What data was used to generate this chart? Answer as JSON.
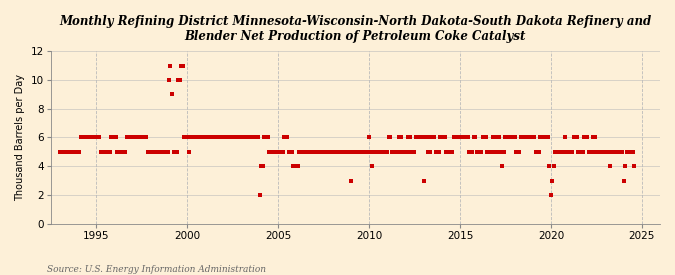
{
  "title": "Monthly Refining District Minnesota-Wisconsin-North Dakota-South Dakota Refinery and\nBlender Net Production of Petroleum Coke Catalyst",
  "ylabel": "Thousand Barrels per Day",
  "source": "Source: U.S. Energy Information Administration",
  "bg_color": "#fdf0d8",
  "plot_bg_color": "#fdf0d8",
  "marker_color": "#cc0000",
  "xlim": [
    1992.5,
    2026.0
  ],
  "ylim": [
    0,
    12
  ],
  "yticks": [
    0,
    2,
    4,
    6,
    8,
    10,
    12
  ],
  "xticks": [
    1995,
    2000,
    2005,
    2010,
    2015,
    2020,
    2025
  ],
  "data": [
    [
      1993.0,
      5
    ],
    [
      1993.08,
      5
    ],
    [
      1993.17,
      5
    ],
    [
      1993.25,
      5
    ],
    [
      1993.33,
      5
    ],
    [
      1993.42,
      5
    ],
    [
      1993.5,
      5
    ],
    [
      1993.58,
      5
    ],
    [
      1993.67,
      5
    ],
    [
      1993.75,
      5
    ],
    [
      1993.83,
      5
    ],
    [
      1993.92,
      5
    ],
    [
      1994.0,
      5
    ],
    [
      1994.08,
      5
    ],
    [
      1994.17,
      6
    ],
    [
      1994.25,
      6
    ],
    [
      1994.33,
      6
    ],
    [
      1994.42,
      6
    ],
    [
      1994.5,
      6
    ],
    [
      1994.58,
      6
    ],
    [
      1994.67,
      6
    ],
    [
      1994.75,
      6
    ],
    [
      1994.83,
      6
    ],
    [
      1994.92,
      6
    ],
    [
      1995.0,
      6
    ],
    [
      1995.08,
      6
    ],
    [
      1995.17,
      6
    ],
    [
      1995.25,
      5
    ],
    [
      1995.33,
      5
    ],
    [
      1995.42,
      5
    ],
    [
      1995.5,
      5
    ],
    [
      1995.58,
      5
    ],
    [
      1995.67,
      5
    ],
    [
      1995.75,
      5
    ],
    [
      1995.83,
      6
    ],
    [
      1995.92,
      6
    ],
    [
      1996.0,
      6
    ],
    [
      1996.08,
      6
    ],
    [
      1996.17,
      5
    ],
    [
      1996.25,
      5
    ],
    [
      1996.33,
      5
    ],
    [
      1996.42,
      5
    ],
    [
      1996.5,
      5
    ],
    [
      1996.58,
      5
    ],
    [
      1996.67,
      6
    ],
    [
      1996.75,
      6
    ],
    [
      1996.83,
      6
    ],
    [
      1996.92,
      6
    ],
    [
      1997.0,
      6
    ],
    [
      1997.08,
      6
    ],
    [
      1997.17,
      6
    ],
    [
      1997.25,
      6
    ],
    [
      1997.33,
      6
    ],
    [
      1997.42,
      6
    ],
    [
      1997.5,
      6
    ],
    [
      1997.58,
      6
    ],
    [
      1997.67,
      6
    ],
    [
      1997.75,
      6
    ],
    [
      1997.83,
      5
    ],
    [
      1997.92,
      5
    ],
    [
      1998.0,
      5
    ],
    [
      1998.08,
      5
    ],
    [
      1998.17,
      5
    ],
    [
      1998.25,
      5
    ],
    [
      1998.33,
      5
    ],
    [
      1998.42,
      5
    ],
    [
      1998.5,
      5
    ],
    [
      1998.58,
      5
    ],
    [
      1998.67,
      5
    ],
    [
      1998.75,
      5
    ],
    [
      1998.83,
      5
    ],
    [
      1998.92,
      5
    ],
    [
      1999.0,
      10
    ],
    [
      1999.08,
      11
    ],
    [
      1999.17,
      9
    ],
    [
      1999.25,
      5
    ],
    [
      1999.33,
      5
    ],
    [
      1999.42,
      5
    ],
    [
      1999.5,
      10
    ],
    [
      1999.58,
      10
    ],
    [
      1999.67,
      11
    ],
    [
      1999.75,
      11
    ],
    [
      1999.83,
      6
    ],
    [
      1999.92,
      6
    ],
    [
      2000.0,
      6
    ],
    [
      2000.08,
      5
    ],
    [
      2000.17,
      6
    ],
    [
      2000.25,
      6
    ],
    [
      2000.33,
      6
    ],
    [
      2000.42,
      6
    ],
    [
      2000.5,
      6
    ],
    [
      2000.58,
      6
    ],
    [
      2000.67,
      6
    ],
    [
      2000.75,
      6
    ],
    [
      2000.83,
      6
    ],
    [
      2000.92,
      6
    ],
    [
      2001.0,
      6
    ],
    [
      2001.08,
      6
    ],
    [
      2001.17,
      6
    ],
    [
      2001.25,
      6
    ],
    [
      2001.33,
      6
    ],
    [
      2001.42,
      6
    ],
    [
      2001.5,
      6
    ],
    [
      2001.58,
      6
    ],
    [
      2001.67,
      6
    ],
    [
      2001.75,
      6
    ],
    [
      2001.83,
      6
    ],
    [
      2001.92,
      6
    ],
    [
      2002.0,
      6
    ],
    [
      2002.08,
      6
    ],
    [
      2002.17,
      6
    ],
    [
      2002.25,
      6
    ],
    [
      2002.33,
      6
    ],
    [
      2002.42,
      6
    ],
    [
      2002.5,
      6
    ],
    [
      2002.58,
      6
    ],
    [
      2002.67,
      6
    ],
    [
      2002.75,
      6
    ],
    [
      2002.83,
      6
    ],
    [
      2002.92,
      6
    ],
    [
      2003.0,
      6
    ],
    [
      2003.08,
      6
    ],
    [
      2003.17,
      6
    ],
    [
      2003.25,
      6
    ],
    [
      2003.33,
      6
    ],
    [
      2003.42,
      6
    ],
    [
      2003.5,
      6
    ],
    [
      2003.58,
      6
    ],
    [
      2003.67,
      6
    ],
    [
      2003.75,
      6
    ],
    [
      2003.83,
      6
    ],
    [
      2003.92,
      6
    ],
    [
      2004.0,
      2
    ],
    [
      2004.08,
      4
    ],
    [
      2004.17,
      4
    ],
    [
      2004.25,
      6
    ],
    [
      2004.33,
      6
    ],
    [
      2004.42,
      6
    ],
    [
      2004.5,
      5
    ],
    [
      2004.58,
      5
    ],
    [
      2004.67,
      5
    ],
    [
      2004.75,
      5
    ],
    [
      2004.83,
      5
    ],
    [
      2004.92,
      5
    ],
    [
      2005.0,
      5
    ],
    [
      2005.08,
      5
    ],
    [
      2005.17,
      5
    ],
    [
      2005.25,
      5
    ],
    [
      2005.33,
      6
    ],
    [
      2005.42,
      6
    ],
    [
      2005.5,
      6
    ],
    [
      2005.58,
      5
    ],
    [
      2005.67,
      5
    ],
    [
      2005.75,
      5
    ],
    [
      2005.83,
      4
    ],
    [
      2005.92,
      4
    ],
    [
      2006.0,
      4
    ],
    [
      2006.08,
      4
    ],
    [
      2006.17,
      5
    ],
    [
      2006.25,
      5
    ],
    [
      2006.33,
      5
    ],
    [
      2006.42,
      5
    ],
    [
      2006.5,
      5
    ],
    [
      2006.58,
      5
    ],
    [
      2006.67,
      5
    ],
    [
      2006.75,
      5
    ],
    [
      2006.83,
      5
    ],
    [
      2006.92,
      5
    ],
    [
      2007.0,
      5
    ],
    [
      2007.08,
      5
    ],
    [
      2007.17,
      5
    ],
    [
      2007.25,
      5
    ],
    [
      2007.33,
      5
    ],
    [
      2007.42,
      5
    ],
    [
      2007.5,
      5
    ],
    [
      2007.58,
      5
    ],
    [
      2007.67,
      5
    ],
    [
      2007.75,
      5
    ],
    [
      2007.83,
      5
    ],
    [
      2007.92,
      5
    ],
    [
      2008.0,
      5
    ],
    [
      2008.08,
      5
    ],
    [
      2008.17,
      5
    ],
    [
      2008.25,
      5
    ],
    [
      2008.33,
      5
    ],
    [
      2008.42,
      5
    ],
    [
      2008.5,
      5
    ],
    [
      2008.58,
      5
    ],
    [
      2008.67,
      5
    ],
    [
      2008.75,
      5
    ],
    [
      2008.83,
      5
    ],
    [
      2008.92,
      5
    ],
    [
      2009.0,
      3
    ],
    [
      2009.08,
      5
    ],
    [
      2009.17,
      5
    ],
    [
      2009.25,
      5
    ],
    [
      2009.33,
      5
    ],
    [
      2009.42,
      5
    ],
    [
      2009.5,
      5
    ],
    [
      2009.58,
      5
    ],
    [
      2009.67,
      5
    ],
    [
      2009.75,
      5
    ],
    [
      2009.83,
      5
    ],
    [
      2009.92,
      5
    ],
    [
      2010.0,
      6
    ],
    [
      2010.08,
      5
    ],
    [
      2010.17,
      4
    ],
    [
      2010.25,
      5
    ],
    [
      2010.33,
      5
    ],
    [
      2010.42,
      5
    ],
    [
      2010.5,
      5
    ],
    [
      2010.58,
      5
    ],
    [
      2010.67,
      5
    ],
    [
      2010.75,
      5
    ],
    [
      2010.83,
      5
    ],
    [
      2010.92,
      5
    ],
    [
      2011.0,
      5
    ],
    [
      2011.08,
      6
    ],
    [
      2011.17,
      6
    ],
    [
      2011.25,
      5
    ],
    [
      2011.33,
      5
    ],
    [
      2011.42,
      5
    ],
    [
      2011.5,
      5
    ],
    [
      2011.58,
      5
    ],
    [
      2011.67,
      6
    ],
    [
      2011.75,
      6
    ],
    [
      2011.83,
      5
    ],
    [
      2011.92,
      5
    ],
    [
      2012.0,
      5
    ],
    [
      2012.08,
      5
    ],
    [
      2012.17,
      6
    ],
    [
      2012.25,
      6
    ],
    [
      2012.33,
      5
    ],
    [
      2012.42,
      5
    ],
    [
      2012.5,
      5
    ],
    [
      2012.58,
      6
    ],
    [
      2012.67,
      6
    ],
    [
      2012.75,
      6
    ],
    [
      2012.83,
      6
    ],
    [
      2012.92,
      6
    ],
    [
      2013.0,
      3
    ],
    [
      2013.08,
      6
    ],
    [
      2013.17,
      6
    ],
    [
      2013.25,
      5
    ],
    [
      2013.33,
      5
    ],
    [
      2013.42,
      6
    ],
    [
      2013.5,
      6
    ],
    [
      2013.58,
      6
    ],
    [
      2013.67,
      5
    ],
    [
      2013.75,
      5
    ],
    [
      2013.83,
      5
    ],
    [
      2013.92,
      6
    ],
    [
      2014.0,
      6
    ],
    [
      2014.08,
      6
    ],
    [
      2014.17,
      6
    ],
    [
      2014.25,
      5
    ],
    [
      2014.33,
      5
    ],
    [
      2014.42,
      5
    ],
    [
      2014.5,
      5
    ],
    [
      2014.58,
      5
    ],
    [
      2014.67,
      6
    ],
    [
      2014.75,
      6
    ],
    [
      2014.83,
      6
    ],
    [
      2014.92,
      6
    ],
    [
      2015.0,
      6
    ],
    [
      2015.08,
      6
    ],
    [
      2015.17,
      6
    ],
    [
      2015.25,
      6
    ],
    [
      2015.33,
      6
    ],
    [
      2015.42,
      6
    ],
    [
      2015.5,
      5
    ],
    [
      2015.58,
      5
    ],
    [
      2015.67,
      5
    ],
    [
      2015.75,
      6
    ],
    [
      2015.83,
      6
    ],
    [
      2015.92,
      5
    ],
    [
      2016.0,
      5
    ],
    [
      2016.08,
      5
    ],
    [
      2016.17,
      5
    ],
    [
      2016.25,
      6
    ],
    [
      2016.33,
      6
    ],
    [
      2016.42,
      6
    ],
    [
      2016.5,
      5
    ],
    [
      2016.58,
      5
    ],
    [
      2016.67,
      5
    ],
    [
      2016.75,
      5
    ],
    [
      2016.83,
      6
    ],
    [
      2016.92,
      6
    ],
    [
      2017.0,
      5
    ],
    [
      2017.08,
      5
    ],
    [
      2017.17,
      6
    ],
    [
      2017.25,
      5
    ],
    [
      2017.33,
      4
    ],
    [
      2017.42,
      5
    ],
    [
      2017.5,
      6
    ],
    [
      2017.58,
      6
    ],
    [
      2017.67,
      6
    ],
    [
      2017.75,
      6
    ],
    [
      2017.83,
      6
    ],
    [
      2017.92,
      6
    ],
    [
      2018.0,
      6
    ],
    [
      2018.08,
      5
    ],
    [
      2018.17,
      5
    ],
    [
      2018.25,
      5
    ],
    [
      2018.33,
      6
    ],
    [
      2018.42,
      6
    ],
    [
      2018.5,
      6
    ],
    [
      2018.58,
      6
    ],
    [
      2018.67,
      6
    ],
    [
      2018.75,
      6
    ],
    [
      2018.83,
      6
    ],
    [
      2018.92,
      6
    ],
    [
      2019.0,
      6
    ],
    [
      2019.08,
      6
    ],
    [
      2019.17,
      5
    ],
    [
      2019.25,
      5
    ],
    [
      2019.33,
      5
    ],
    [
      2019.42,
      6
    ],
    [
      2019.5,
      6
    ],
    [
      2019.58,
      6
    ],
    [
      2019.67,
      6
    ],
    [
      2019.75,
      6
    ],
    [
      2019.83,
      6
    ],
    [
      2019.92,
      4
    ],
    [
      2020.0,
      2
    ],
    [
      2020.08,
      3
    ],
    [
      2020.17,
      4
    ],
    [
      2020.25,
      5
    ],
    [
      2020.33,
      5
    ],
    [
      2020.42,
      5
    ],
    [
      2020.5,
      5
    ],
    [
      2020.58,
      5
    ],
    [
      2020.67,
      5
    ],
    [
      2020.75,
      6
    ],
    [
      2020.83,
      5
    ],
    [
      2020.92,
      5
    ],
    [
      2021.0,
      5
    ],
    [
      2021.08,
      5
    ],
    [
      2021.17,
      5
    ],
    [
      2021.25,
      6
    ],
    [
      2021.33,
      6
    ],
    [
      2021.42,
      6
    ],
    [
      2021.5,
      5
    ],
    [
      2021.58,
      5
    ],
    [
      2021.67,
      5
    ],
    [
      2021.75,
      5
    ],
    [
      2021.83,
      6
    ],
    [
      2021.92,
      6
    ],
    [
      2022.0,
      6
    ],
    [
      2022.08,
      5
    ],
    [
      2022.17,
      5
    ],
    [
      2022.25,
      5
    ],
    [
      2022.33,
      6
    ],
    [
      2022.42,
      6
    ],
    [
      2022.5,
      5
    ],
    [
      2022.58,
      5
    ],
    [
      2022.67,
      5
    ],
    [
      2022.75,
      5
    ],
    [
      2022.83,
      5
    ],
    [
      2022.92,
      5
    ],
    [
      2023.0,
      5
    ],
    [
      2023.08,
      5
    ],
    [
      2023.17,
      5
    ],
    [
      2023.25,
      4
    ],
    [
      2023.33,
      5
    ],
    [
      2023.42,
      5
    ],
    [
      2023.5,
      5
    ],
    [
      2023.58,
      5
    ],
    [
      2023.67,
      5
    ],
    [
      2023.75,
      5
    ],
    [
      2023.83,
      5
    ],
    [
      2023.92,
      5
    ],
    [
      2024.0,
      3
    ],
    [
      2024.08,
      4
    ],
    [
      2024.17,
      5
    ],
    [
      2024.25,
      5
    ],
    [
      2024.33,
      5
    ],
    [
      2024.42,
      5
    ],
    [
      2024.5,
      5
    ],
    [
      2024.58,
      4
    ]
  ]
}
